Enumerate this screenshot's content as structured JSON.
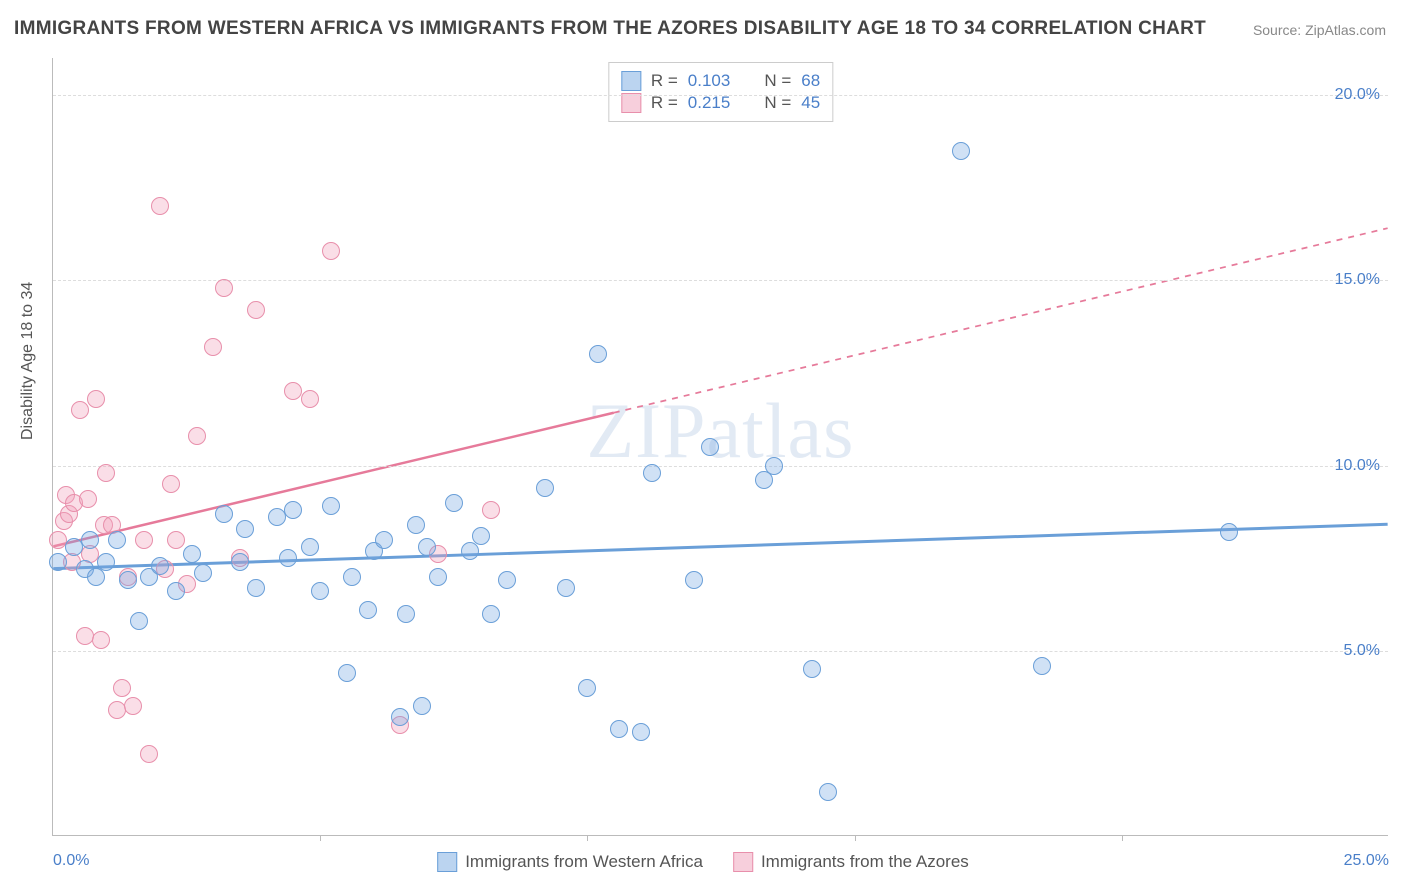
{
  "title": "IMMIGRANTS FROM WESTERN AFRICA VS IMMIGRANTS FROM THE AZORES DISABILITY AGE 18 TO 34 CORRELATION CHART",
  "source": "Source: ZipAtlas.com",
  "y_axis_title": "Disability Age 18 to 34",
  "watermark_a": "ZIP",
  "watermark_b": "atlas",
  "chart": {
    "type": "scatter",
    "xlim": [
      0,
      25
    ],
    "ylim": [
      0,
      21
    ],
    "x_ticks": [
      0,
      5,
      10,
      15,
      20,
      25
    ],
    "x_tick_labels": [
      "0.0%",
      "",
      "",
      "",
      "",
      "25.0%"
    ],
    "y_ticks": [
      5,
      10,
      15,
      20
    ],
    "y_tick_labels": [
      "5.0%",
      "10.0%",
      "15.0%",
      "20.0%"
    ],
    "x_tick_marks": [
      5,
      10,
      15,
      20
    ],
    "background_color": "#ffffff",
    "grid_color": "#dddddd",
    "axis_label_color": "#4a7fc9",
    "series": [
      {
        "name": "Immigrants from Western Africa",
        "color": "#6a9fd8",
        "fill": "rgba(120,170,225,0.35)",
        "R": "0.103",
        "N": "68",
        "trend": {
          "x1": 0,
          "y1": 7.2,
          "x2": 25,
          "y2": 8.4,
          "width": 3,
          "dash_from": null
        },
        "points": [
          [
            0.1,
            7.4
          ],
          [
            0.4,
            7.8
          ],
          [
            0.6,
            7.2
          ],
          [
            0.7,
            8.0
          ],
          [
            0.8,
            7.0
          ],
          [
            1.0,
            7.4
          ],
          [
            1.2,
            8.0
          ],
          [
            1.4,
            6.9
          ],
          [
            1.6,
            5.8
          ],
          [
            1.8,
            7.0
          ],
          [
            2.0,
            7.3
          ],
          [
            2.3,
            6.6
          ],
          [
            2.6,
            7.6
          ],
          [
            2.8,
            7.1
          ],
          [
            3.2,
            8.7
          ],
          [
            3.5,
            7.4
          ],
          [
            3.6,
            8.3
          ],
          [
            3.8,
            6.7
          ],
          [
            4.2,
            8.6
          ],
          [
            4.4,
            7.5
          ],
          [
            4.5,
            8.8
          ],
          [
            4.8,
            7.8
          ],
          [
            5.0,
            6.6
          ],
          [
            5.2,
            8.9
          ],
          [
            5.5,
            4.4
          ],
          [
            5.6,
            7.0
          ],
          [
            5.9,
            6.1
          ],
          [
            6.0,
            7.7
          ],
          [
            6.2,
            8.0
          ],
          [
            6.5,
            3.2
          ],
          [
            6.6,
            6.0
          ],
          [
            6.8,
            8.4
          ],
          [
            6.9,
            3.5
          ],
          [
            7.0,
            7.8
          ],
          [
            7.2,
            7.0
          ],
          [
            7.5,
            9.0
          ],
          [
            7.8,
            7.7
          ],
          [
            8.0,
            8.1
          ],
          [
            8.2,
            6.0
          ],
          [
            8.5,
            6.9
          ],
          [
            9.2,
            9.4
          ],
          [
            9.6,
            6.7
          ],
          [
            10.0,
            4.0
          ],
          [
            10.2,
            13.0
          ],
          [
            10.6,
            2.9
          ],
          [
            11.0,
            2.8
          ],
          [
            11.2,
            9.8
          ],
          [
            12.0,
            6.9
          ],
          [
            12.3,
            10.5
          ],
          [
            13.3,
            9.6
          ],
          [
            13.5,
            10.0
          ],
          [
            14.2,
            4.5
          ],
          [
            14.5,
            1.2
          ],
          [
            17.0,
            18.5
          ],
          [
            18.5,
            4.6
          ],
          [
            22.0,
            8.2
          ]
        ]
      },
      {
        "name": "Immigrants from the Azores",
        "color": "#e67a9a",
        "fill": "rgba(240,160,185,0.35)",
        "R": "0.215",
        "N": "45",
        "trend": {
          "x1": 0,
          "y1": 7.8,
          "x2": 25,
          "y2": 16.4,
          "width": 2.5,
          "dash_from": 10.5
        },
        "points": [
          [
            0.1,
            8.0
          ],
          [
            0.2,
            8.5
          ],
          [
            0.25,
            9.2
          ],
          [
            0.3,
            8.7
          ],
          [
            0.35,
            7.4
          ],
          [
            0.4,
            9.0
          ],
          [
            0.5,
            11.5
          ],
          [
            0.6,
            5.4
          ],
          [
            0.65,
            9.1
          ],
          [
            0.7,
            7.6
          ],
          [
            0.8,
            11.8
          ],
          [
            0.9,
            5.3
          ],
          [
            0.95,
            8.4
          ],
          [
            1.0,
            9.8
          ],
          [
            1.1,
            8.4
          ],
          [
            1.2,
            3.4
          ],
          [
            1.3,
            4.0
          ],
          [
            1.4,
            7.0
          ],
          [
            1.5,
            3.5
          ],
          [
            1.7,
            8.0
          ],
          [
            1.8,
            2.2
          ],
          [
            2.0,
            17.0
          ],
          [
            2.1,
            7.2
          ],
          [
            2.2,
            9.5
          ],
          [
            2.3,
            8.0
          ],
          [
            2.5,
            6.8
          ],
          [
            2.7,
            10.8
          ],
          [
            3.0,
            13.2
          ],
          [
            3.2,
            14.8
          ],
          [
            3.5,
            7.5
          ],
          [
            3.8,
            14.2
          ],
          [
            4.5,
            12.0
          ],
          [
            4.8,
            11.8
          ],
          [
            5.2,
            15.8
          ],
          [
            6.5,
            3.0
          ],
          [
            7.2,
            7.6
          ],
          [
            8.2,
            8.8
          ]
        ]
      }
    ]
  },
  "legend_bottom": {
    "series1": "Immigrants from Western Africa",
    "series2": "Immigrants from the Azores"
  },
  "legend_top": {
    "r_label": "R =",
    "n_label": "N ="
  }
}
